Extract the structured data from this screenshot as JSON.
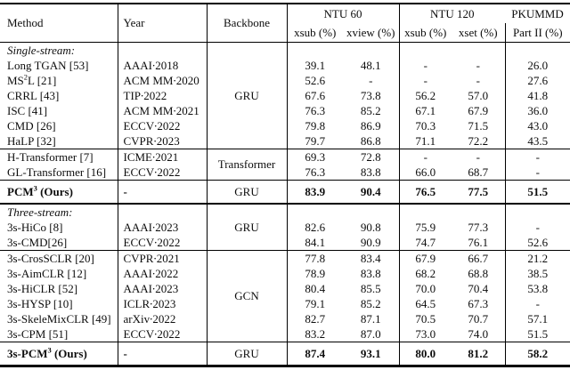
{
  "table": {
    "header": {
      "method": "Method",
      "year": "Year",
      "backbone": "Backbone",
      "ntu60": "NTU 60",
      "ntu120": "NTU 120",
      "pkummd_line1": "PKUMMD",
      "ntu60_xsub": "xsub (%)",
      "ntu60_xview": "xview (%)",
      "ntu120_xsub": "xsub (%)",
      "ntu120_xset": "xset (%)",
      "pkummd_line2": "Part II (%)"
    },
    "sections": [
      {
        "backbone": "GRU",
        "divider": "thin",
        "rows": [
          {
            "method": [
              {
                "t": "Single-stream:"
              }
            ],
            "label": true,
            "year": "",
            "values": [
              "",
              "",
              "",
              "",
              ""
            ]
          },
          {
            "method": [
              {
                "t": "Long TGAN [53]"
              }
            ],
            "year": "AAAI∙2018",
            "values": [
              "39.1",
              "48.1",
              "-",
              "-",
              "26.0"
            ]
          },
          {
            "method": [
              {
                "t": "MS"
              },
              {
                "t": "2",
                "sup": true
              },
              {
                "t": "L [21]"
              }
            ],
            "year": "ACM MM∙2020",
            "values": [
              "52.6",
              "-",
              "-",
              "-",
              "27.6"
            ]
          },
          {
            "method": [
              {
                "t": "CRRL [43]"
              }
            ],
            "year": "TIP∙2022",
            "values": [
              "67.6",
              "73.8",
              "56.2",
              "57.0",
              "41.8"
            ]
          },
          {
            "method": [
              {
                "t": "ISC [41]"
              }
            ],
            "year": "ACM MM∙2021",
            "values": [
              "76.3",
              "85.2",
              "67.1",
              "67.9",
              "36.0"
            ]
          },
          {
            "method": [
              {
                "t": "CMD [26]"
              }
            ],
            "year": "ECCV∙2022",
            "values": [
              "79.8",
              "86.9",
              "70.3",
              "71.5",
              "43.0"
            ]
          },
          {
            "method": [
              {
                "t": "HaLP [32]"
              }
            ],
            "year": "CVPR∙2023",
            "values": [
              "79.7",
              "86.8",
              "71.1",
              "72.2",
              "43.5"
            ]
          }
        ]
      },
      {
        "backbone": "Transformer",
        "divider": "thin",
        "rows": [
          {
            "method": [
              {
                "t": "H-Transformer [7]"
              }
            ],
            "year": "ICME∙2021",
            "values": [
              "69.3",
              "72.8",
              "-",
              "-",
              "-"
            ]
          },
          {
            "method": [
              {
                "t": "GL-Transformer [16]"
              }
            ],
            "year": "ECCV∙2022",
            "values": [
              "76.3",
              "83.8",
              "66.0",
              "68.7",
              "-"
            ]
          }
        ]
      },
      {
        "backbone": "GRU",
        "divider": "thick",
        "rows": [
          {
            "method": [
              {
                "t": "PCM"
              },
              {
                "t": "3",
                "sup": true
              },
              {
                "t": " (Ours)"
              }
            ],
            "bold": true,
            "year": "-",
            "values": [
              "83.9",
              "90.4",
              "76.5",
              "77.5",
              "51.5"
            ]
          }
        ]
      },
      {
        "backbone": "GRU",
        "divider": "thin",
        "rows": [
          {
            "method": [
              {
                "t": "Three-stream:"
              }
            ],
            "label": true,
            "year": "",
            "values": [
              "",
              "",
              "",
              "",
              ""
            ]
          },
          {
            "method": [
              {
                "t": "3s-HiCo [8]"
              }
            ],
            "year": "AAAI∙2023",
            "values": [
              "82.6",
              "90.8",
              "75.9",
              "77.3",
              "-"
            ]
          },
          {
            "method": [
              {
                "t": "3s-CMD[26]"
              }
            ],
            "year": "ECCV∙2022",
            "values": [
              "84.1",
              "90.9",
              "74.7",
              "76.1",
              "52.6"
            ]
          }
        ]
      },
      {
        "backbone": "GCN",
        "divider": "thin",
        "rows": [
          {
            "method": [
              {
                "t": "3s-CrosSCLR [20]"
              }
            ],
            "year": "CVPR∙2021",
            "values": [
              "77.8",
              "83.4",
              "67.9",
              "66.7",
              "21.2"
            ]
          },
          {
            "method": [
              {
                "t": "3s-AimCLR [12]"
              }
            ],
            "year": "AAAI∙2022",
            "values": [
              "78.9",
              "83.8",
              "68.2",
              "68.8",
              "38.5"
            ]
          },
          {
            "method": [
              {
                "t": "3s-HiCLR [52]"
              }
            ],
            "year": "AAAI∙2023",
            "values": [
              "80.4",
              "85.5",
              "70.0",
              "70.4",
              "53.8"
            ]
          },
          {
            "method": [
              {
                "t": "3s-HYSP [10]"
              }
            ],
            "year": "ICLR∙2023",
            "values": [
              "79.1",
              "85.2",
              "64.5",
              "67.3",
              "-"
            ]
          },
          {
            "method": [
              {
                "t": "3s-SkeleMixCLR [49]"
              }
            ],
            "year": "arXiv∙2022",
            "values": [
              "82.7",
              "87.1",
              "70.5",
              "70.7",
              "57.1"
            ]
          },
          {
            "method": [
              {
                "t": "3s-CPM [51]"
              }
            ],
            "year": "ECCV∙2022",
            "values": [
              "83.2",
              "87.0",
              "73.0",
              "74.0",
              "51.5"
            ]
          }
        ]
      },
      {
        "backbone": "GRU",
        "divider": "bottom",
        "rows": [
          {
            "method": [
              {
                "t": "3s-PCM"
              },
              {
                "t": "3",
                "sup": true
              },
              {
                "t": " (Ours)"
              }
            ],
            "bold": true,
            "year": "-",
            "values": [
              "87.4",
              "93.1",
              "80.0",
              "81.2",
              "58.2"
            ]
          }
        ]
      }
    ]
  }
}
